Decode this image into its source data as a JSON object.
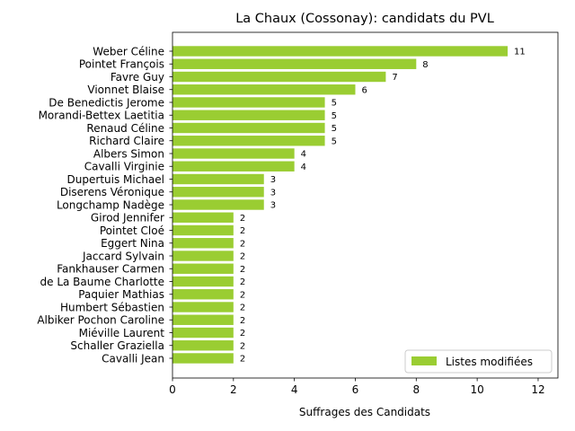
{
  "chart_data": {
    "type": "bar",
    "orientation": "horizontal",
    "title": "La Chaux (Cossonay): candidats du PVL",
    "xlabel": "Suffrages des Candidats",
    "ylabel": "",
    "xlim": [
      0,
      12.65
    ],
    "xticks": [
      "0",
      "2",
      "4",
      "6",
      "8",
      "10",
      "12"
    ],
    "grid": false,
    "legend_position": "lower-right",
    "bar_color": "#9acd32",
    "series": [
      {
        "name": "Listes modifiées",
        "values": [
          11,
          8,
          7,
          6,
          5,
          5,
          5,
          5,
          4,
          4,
          3,
          3,
          3,
          2,
          2,
          2,
          2,
          2,
          2,
          2,
          2,
          2,
          2,
          2,
          2
        ]
      }
    ],
    "categories": [
      "Weber Céline",
      "Pointet François",
      "Favre Guy",
      "Vionnet Blaise",
      "De Benedictis Jerome",
      "Morandi-Bettex Laetitia",
      "Renaud Céline",
      "Richard Claire",
      "Albers Simon",
      "Cavalli Virginie",
      "Dupertuis Michael",
      "Diserens Véronique",
      "Longchamp Nadège",
      "Girod Jennifer",
      "Pointet Cloé",
      "Eggert Nina",
      "Jaccard Sylvain",
      "Fankhauser Carmen",
      "de La Baume Charlotte",
      "Paquier Mathias",
      "Humbert Sébastien",
      "Albiker Pochon Caroline",
      "Miéville Laurent",
      "Schaller Graziella",
      "Cavalli Jean"
    ],
    "data_labels": [
      "11",
      "8",
      "7",
      "6",
      "5",
      "5",
      "5",
      "5",
      "4",
      "4",
      "3",
      "3",
      "3",
      "2",
      "2",
      "2",
      "2",
      "2",
      "2",
      "2",
      "2",
      "2",
      "2",
      "2",
      "2"
    ]
  }
}
